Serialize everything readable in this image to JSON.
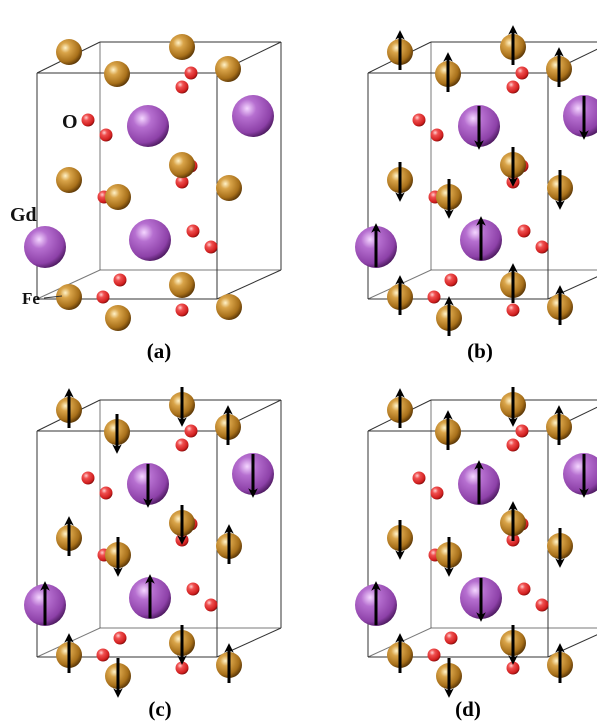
{
  "panels": [
    {
      "caption": "(a)",
      "spins": "none"
    },
    {
      "caption": "(b)",
      "spins": "arrangement-b"
    },
    {
      "caption": "(c)",
      "spins": "arrangement-c"
    },
    {
      "caption": "(d)",
      "spins": "arrangement-d"
    }
  ],
  "atom_labels": {
    "oxygen": "O",
    "gadolinium": "Gd",
    "iron": "Fe"
  },
  "colors": {
    "fe": "#a8701a",
    "gd": "#9a4fb4",
    "o": "#e02a2a",
    "cell_edge": "#333333",
    "arrow": "#000000",
    "background": "#ffffff"
  }
}
